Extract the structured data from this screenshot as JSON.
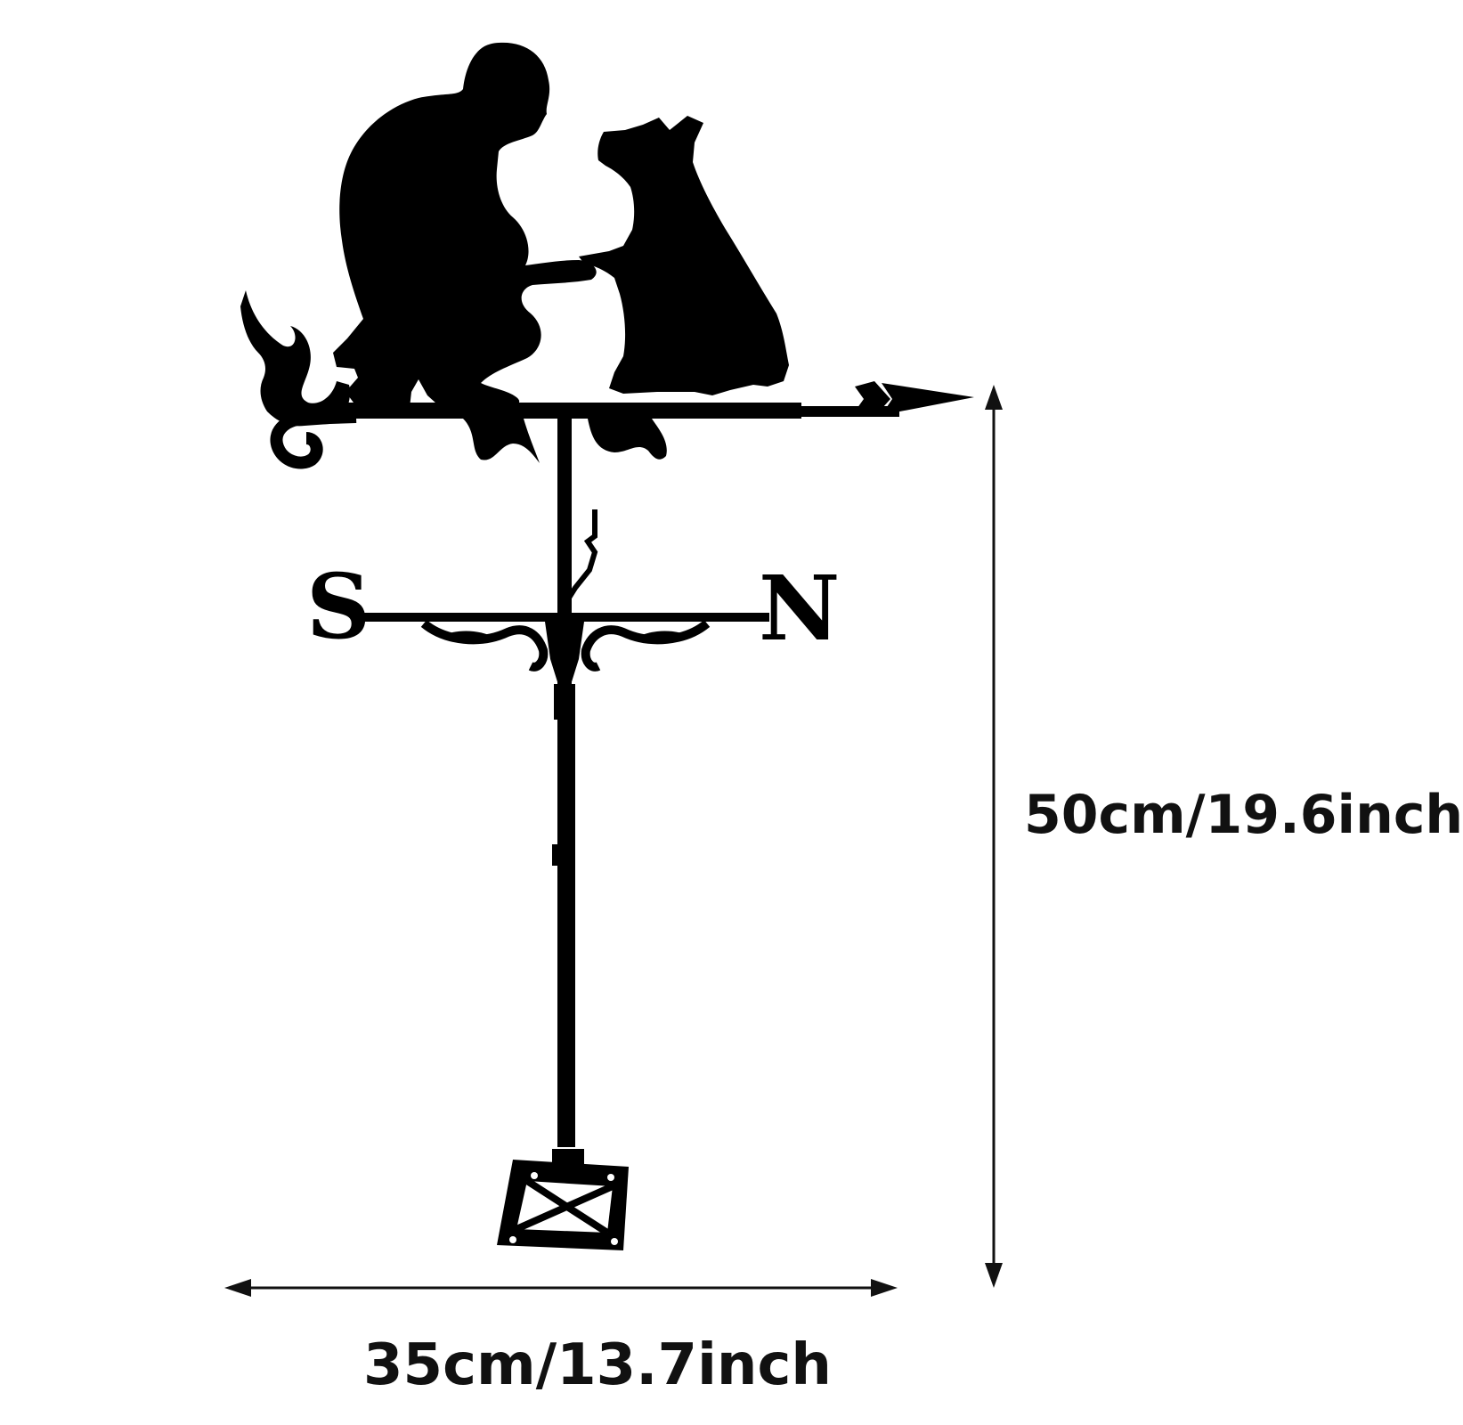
{
  "dimensions": {
    "height": "50cm/19.6inch",
    "width": "35cm/13.7inch"
  },
  "compass": {
    "left_letter": "S",
    "right_letter": "N"
  },
  "colors": {
    "silhouette": "#000000",
    "background": "#ffffff",
    "dimension_line": "#111111"
  }
}
